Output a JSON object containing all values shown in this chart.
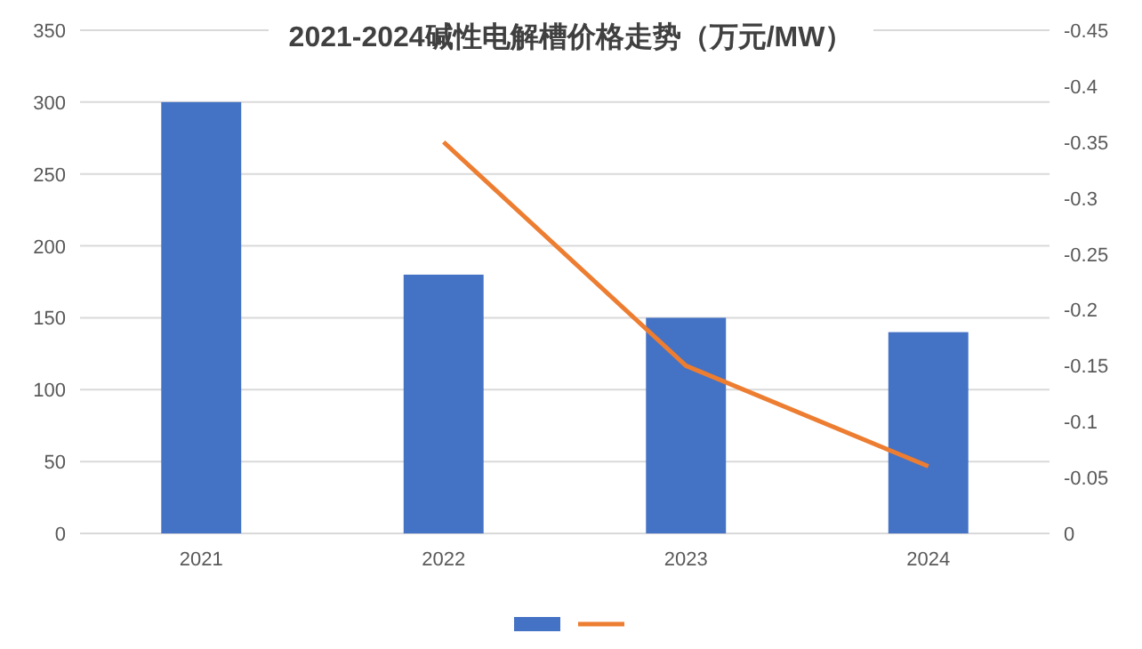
{
  "chart_data": {
    "type": "bar",
    "title": "2021-2024碱性电解槽价格走势（万元/MW）",
    "categories": [
      "2021",
      "2022",
      "2023",
      "2024"
    ],
    "series": [
      {
        "color": "#4472c4",
        "values": [
          300,
          180,
          150,
          140
        ]
      },
      {
        "type": "line",
        "axis": "y2",
        "color": "#ed7d31",
        "values": [
          null,
          -0.35,
          -0.15,
          -0.06
        ]
      }
    ],
    "ylim": [
      0,
      350
    ],
    "yticks": [
      0,
      50,
      100,
      150,
      200,
      250,
      300,
      350
    ],
    "y2lim": [
      0,
      -0.45
    ],
    "y2ticks": [
      0,
      -0.05,
      -0.1,
      -0.15,
      -0.2,
      -0.25,
      -0.3,
      -0.35,
      -0.4,
      -0.45
    ],
    "grid": "y",
    "marker": "none",
    "line_style": "solid"
  }
}
